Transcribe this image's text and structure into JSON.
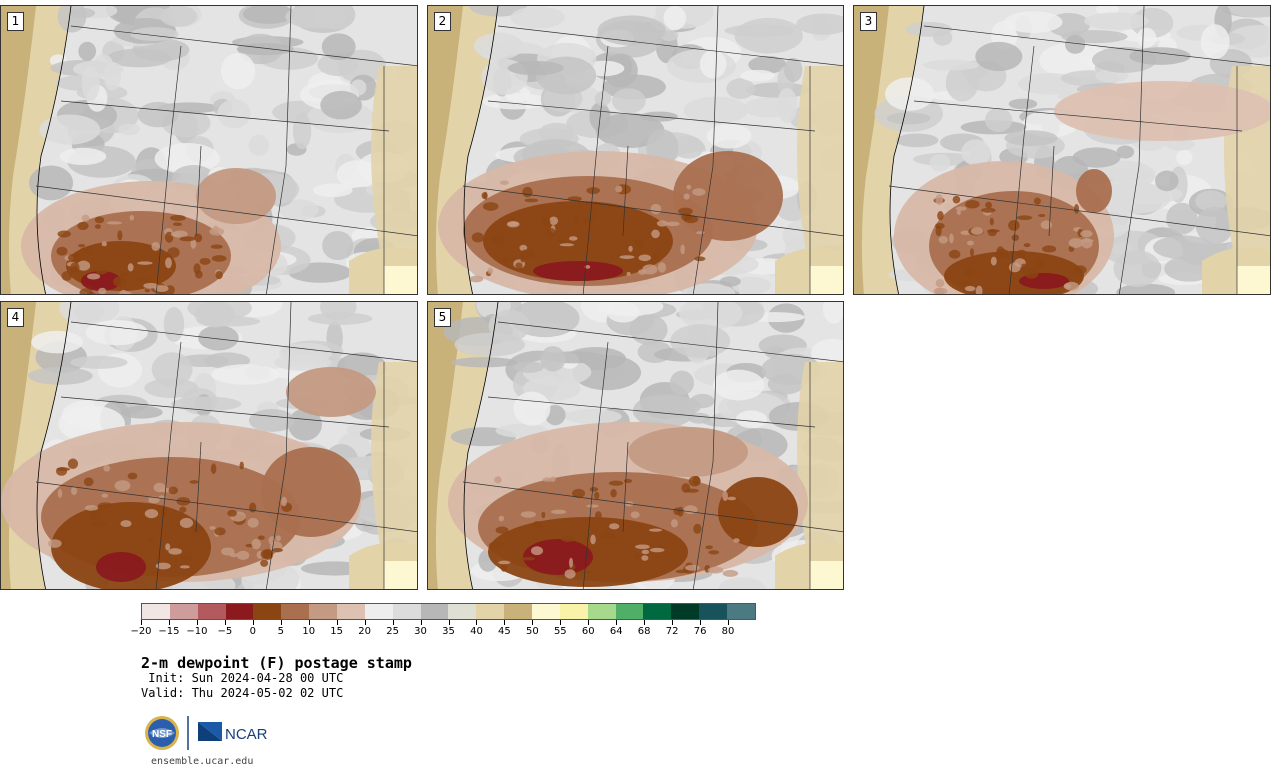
{
  "panels": [
    {
      "label": "1"
    },
    {
      "label": "2"
    },
    {
      "label": "3"
    },
    {
      "label": "4"
    },
    {
      "label": "5"
    }
  ],
  "legend": {
    "colors": [
      "#f2e6e4",
      "#cf9c9c",
      "#b25a5e",
      "#8a1a1e",
      "#8b4513",
      "#a96f4f",
      "#c49a83",
      "#ddc1b2",
      "#eeeeee",
      "#dcdcdc",
      "#b7b7b7",
      "#dfdfd3",
      "#e2d3a8",
      "#c9b27a",
      "#fdf8d2",
      "#f8f3a9",
      "#a6d98c",
      "#4faf67",
      "#00693f",
      "#003b27",
      "#18525b",
      "#4b7a82"
    ],
    "ticks": [
      "-20",
      "-15",
      "-10",
      "-5",
      "0",
      "5",
      "10",
      "15",
      "20",
      "25",
      "30",
      "35",
      "40",
      "45",
      "50",
      "55",
      "60",
      "64",
      "68",
      "72",
      "76",
      "80"
    ]
  },
  "title": "2-m dewpoint (F) postage stamp",
  "init": " Init: Sun 2024-04-28 00 UTC",
  "valid": "Valid: Thu 2024-05-02 02 UTC",
  "logos": {
    "left": "NSF",
    "right": "NCAR"
  },
  "url": "ensemble.ucar.edu"
}
